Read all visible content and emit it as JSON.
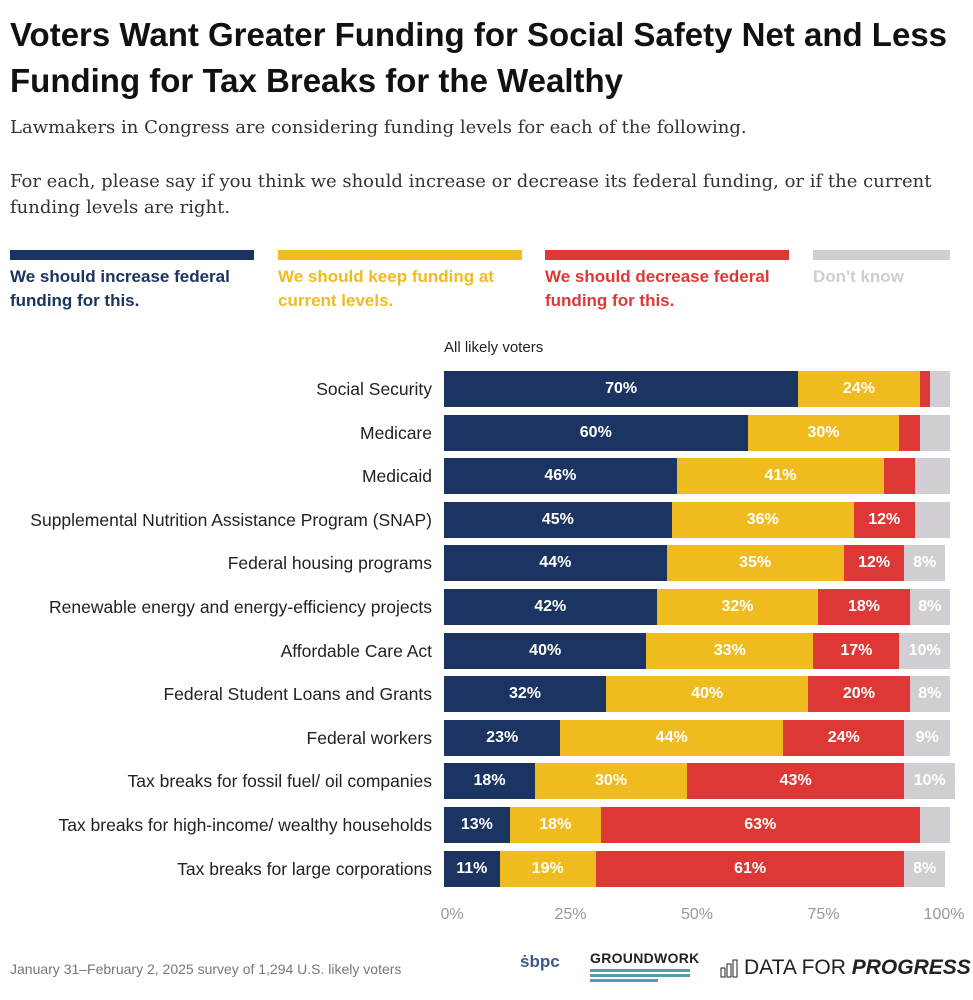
{
  "title": "Voters Want Greater Funding for Social Safety Net and Less Funding for Tax Breaks for the Wealthy",
  "subtitle1": "Lawmakers in Congress are considering funding levels for each of the following.",
  "subtitle2": "For each, please say if you think we should increase or decrease its federal funding, or if the current funding levels are right.",
  "footnote": "January 31–February 2, 2025 survey of 1,294 U.S. likely voters",
  "logos": [
    "SBPC",
    "GROUNDWORK COLLABORATIVE",
    "DATA FOR PROGRESS"
  ],
  "chart_data": {
    "type": "bar",
    "orientation": "horizontal-stacked-100",
    "group_label": "All likely voters",
    "xlim": [
      0,
      100
    ],
    "x_ticks": [
      "0%",
      "25%",
      "50%",
      "75%",
      "100%"
    ],
    "legend_placement": "top",
    "categories": [
      "Social Security",
      "Medicare",
      "Medicaid",
      "Supplemental Nutrition Assistance Program (SNAP)",
      "Federal housing programs",
      "Renewable energy and energy-efficiency projects",
      "Affordable Care Act",
      "Federal Student Loans and Grants",
      "Federal workers",
      "Tax breaks for fossil fuel/ oil companies",
      "Tax breaks for high-income/ wealthy households",
      "Tax breaks for large corporations"
    ],
    "series": [
      {
        "name": "We should increase federal funding for this.",
        "color": "#1b3461",
        "values": [
          70,
          60,
          46,
          45,
          44,
          42,
          40,
          32,
          23,
          18,
          13,
          11
        ]
      },
      {
        "name": "We should keep funding at current levels.",
        "color": "#f0bb1e",
        "values": [
          24,
          30,
          41,
          36,
          35,
          32,
          33,
          40,
          44,
          30,
          18,
          19
        ]
      },
      {
        "name": "We should decrease federal funding for this.",
        "color": "#dd3836",
        "values": [
          2,
          4,
          6,
          12,
          12,
          18,
          17,
          20,
          24,
          43,
          63,
          61
        ]
      },
      {
        "name": "Don't know",
        "color": "#d1ced3",
        "values": [
          4,
          6,
          7,
          7,
          8,
          8,
          10,
          8,
          9,
          10,
          6,
          8
        ]
      }
    ]
  }
}
